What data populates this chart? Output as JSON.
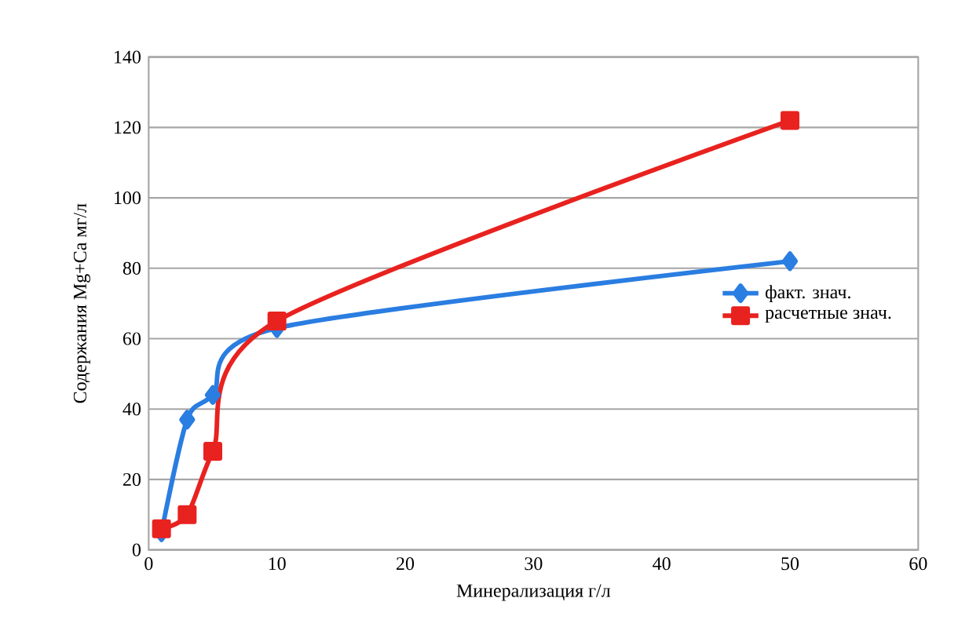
{
  "chart_data": {
    "type": "line",
    "xlabel": "Минерализация   г/л",
    "ylabel": "Содержания Mg+Ca мг/л",
    "xlim": [
      0,
      60
    ],
    "xticks": [
      0,
      10,
      20,
      30,
      40,
      50,
      60
    ],
    "ylim": [
      0,
      140
    ],
    "yticks": [
      0,
      20,
      40,
      60,
      80,
      100,
      120,
      140
    ],
    "grid": "y",
    "legend": "right",
    "series": [
      {
        "name": "факт. знач.",
        "color": "#2a7de1",
        "marker": "diamond",
        "x": [
          1,
          3,
          5,
          10,
          50
        ],
        "values": [
          5,
          37,
          44,
          63,
          82
        ]
      },
      {
        "name": "расчетные знач.",
        "color": "#e8221f",
        "marker": "square",
        "x": [
          1,
          3,
          5,
          10,
          50
        ],
        "values": [
          6,
          10,
          28,
          65,
          122
        ]
      }
    ]
  }
}
